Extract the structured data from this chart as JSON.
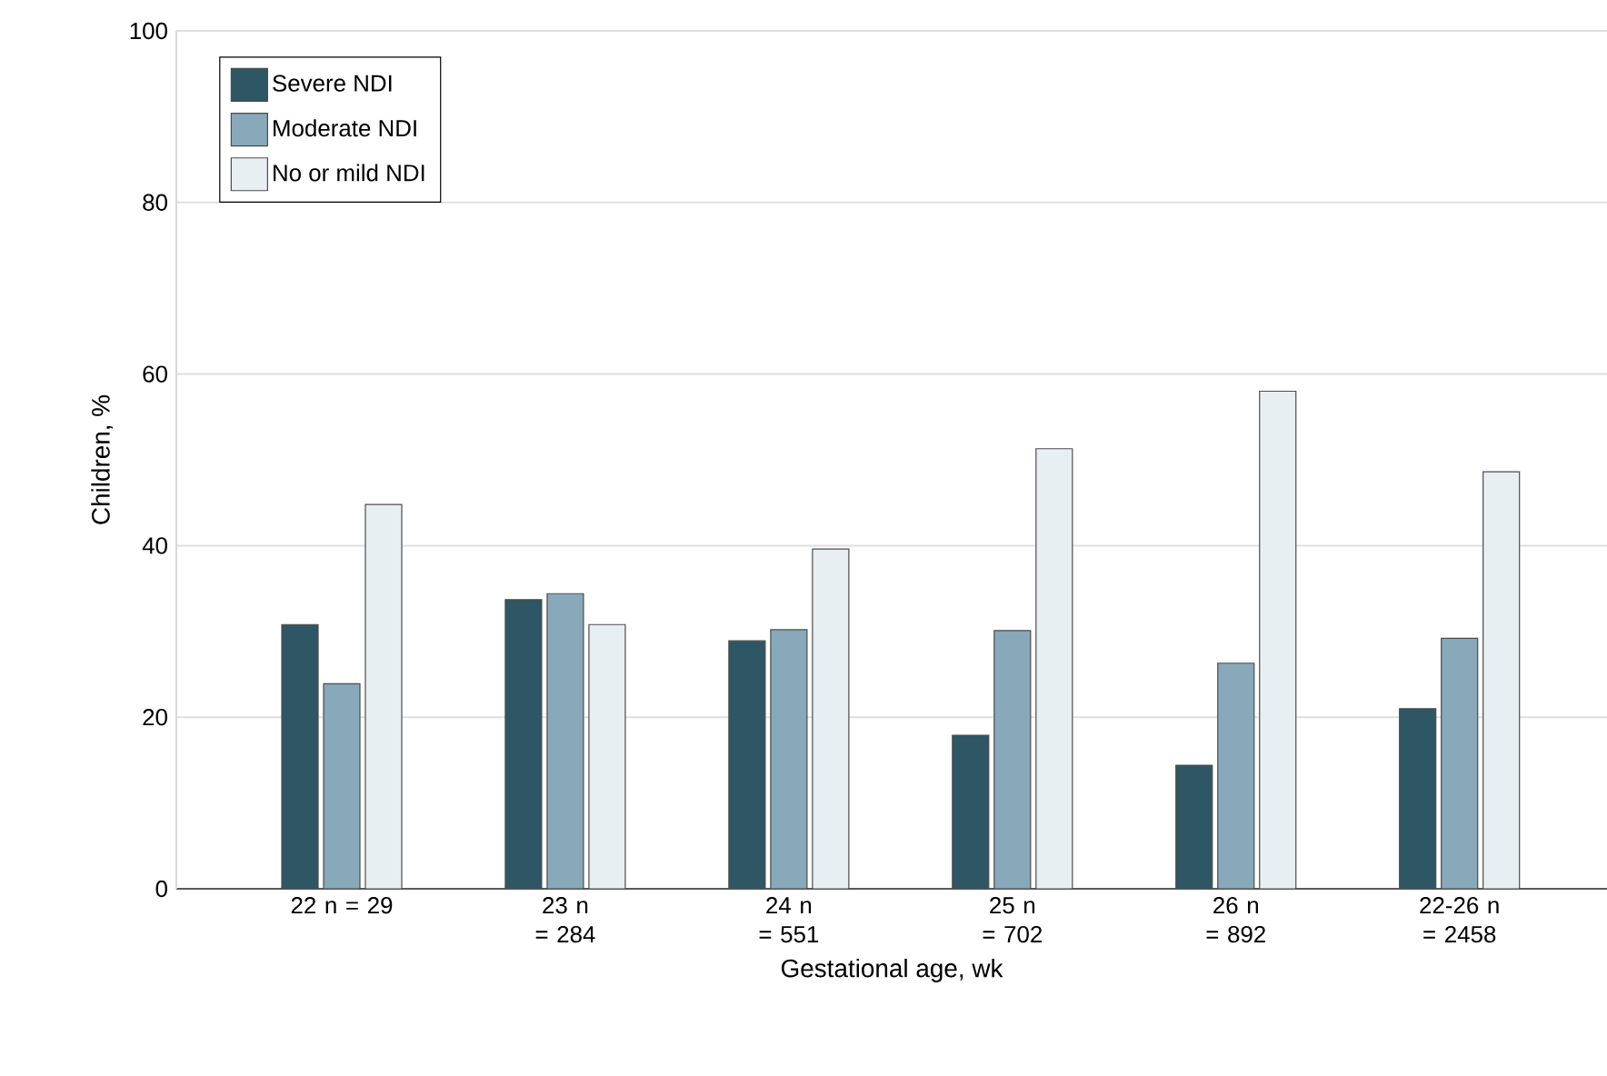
{
  "chart_data": {
    "type": "bar",
    "xlabel": "Gestational age, wk",
    "ylabel": "Children, %",
    "categories": [
      "22 n = 29",
      "23 n = 284",
      "24 n = 551",
      "25 n = 702",
      "26 n = 892",
      "22-26 n = 2458"
    ],
    "series": [
      {
        "name": "Severe NDI",
        "color": "#2f5664",
        "values": [
          30.8,
          33.7,
          28.9,
          17.9,
          14.4,
          21.0
        ]
      },
      {
        "name": "Moderate NDI",
        "color": "#87a9b9",
        "values": [
          23.9,
          34.4,
          30.2,
          30.1,
          26.3,
          29.2
        ]
      },
      {
        "name": "No or mild NDI",
        "color": "#e8eff3",
        "values": [
          44.8,
          30.8,
          39.6,
          51.3,
          58.0,
          48.6
        ]
      }
    ],
    "ylim": [
      0,
      100
    ],
    "yticks": [
      0,
      20,
      40,
      60,
      80,
      100
    ],
    "grid": "y",
    "legend": "top left"
  }
}
